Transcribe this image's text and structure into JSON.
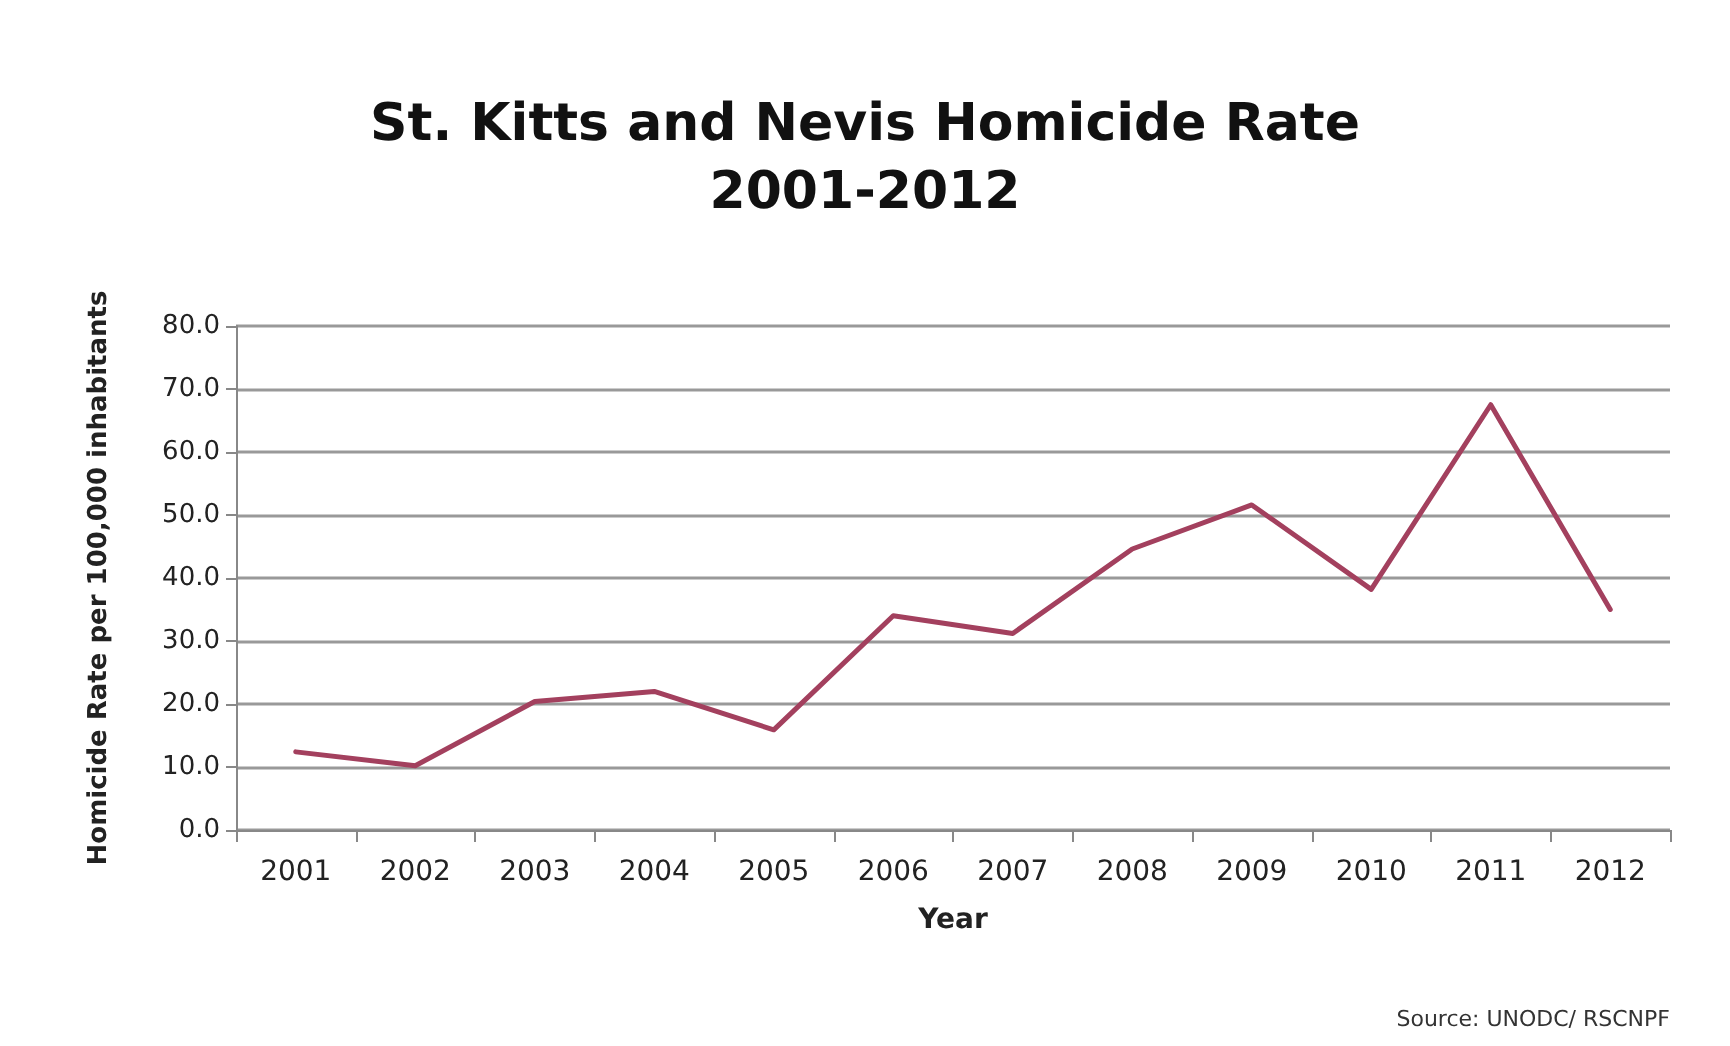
{
  "chart_data": {
    "type": "line",
    "title": "St. Kitts and Nevis Homicide Rate\n2001-2012",
    "xlabel": "Year",
    "ylabel": "Homicide Rate per 100,000 inhabitants",
    "annotations": [
      "Source: UNODC/ RSCNPF"
    ],
    "categories": [
      "2001",
      "2002",
      "2003",
      "2004",
      "2005",
      "2006",
      "2007",
      "2008",
      "2009",
      "2010",
      "2011",
      "2012"
    ],
    "series": [
      {
        "color": "#a3405e",
        "values": [
          12.4,
          10.2,
          20.4,
          22.0,
          15.9,
          34.0,
          31.2,
          44.6,
          51.6,
          38.2,
          67.5,
          35.0
        ]
      }
    ],
    "ylim": [
      0,
      80
    ],
    "yticks": [
      {
        "value": 0,
        "label": "0.0"
      },
      {
        "value": 10,
        "label": "10.0"
      },
      {
        "value": 20,
        "label": "20.0"
      },
      {
        "value": 30,
        "label": "30.0"
      },
      {
        "value": 40,
        "label": "40.0"
      },
      {
        "value": 50,
        "label": "50.0"
      },
      {
        "value": 60,
        "label": "60.0"
      },
      {
        "value": 70,
        "label": "70.0"
      },
      {
        "value": 80,
        "label": "80.0"
      }
    ],
    "grid": "y",
    "marker": "none",
    "line_style": "solid"
  }
}
